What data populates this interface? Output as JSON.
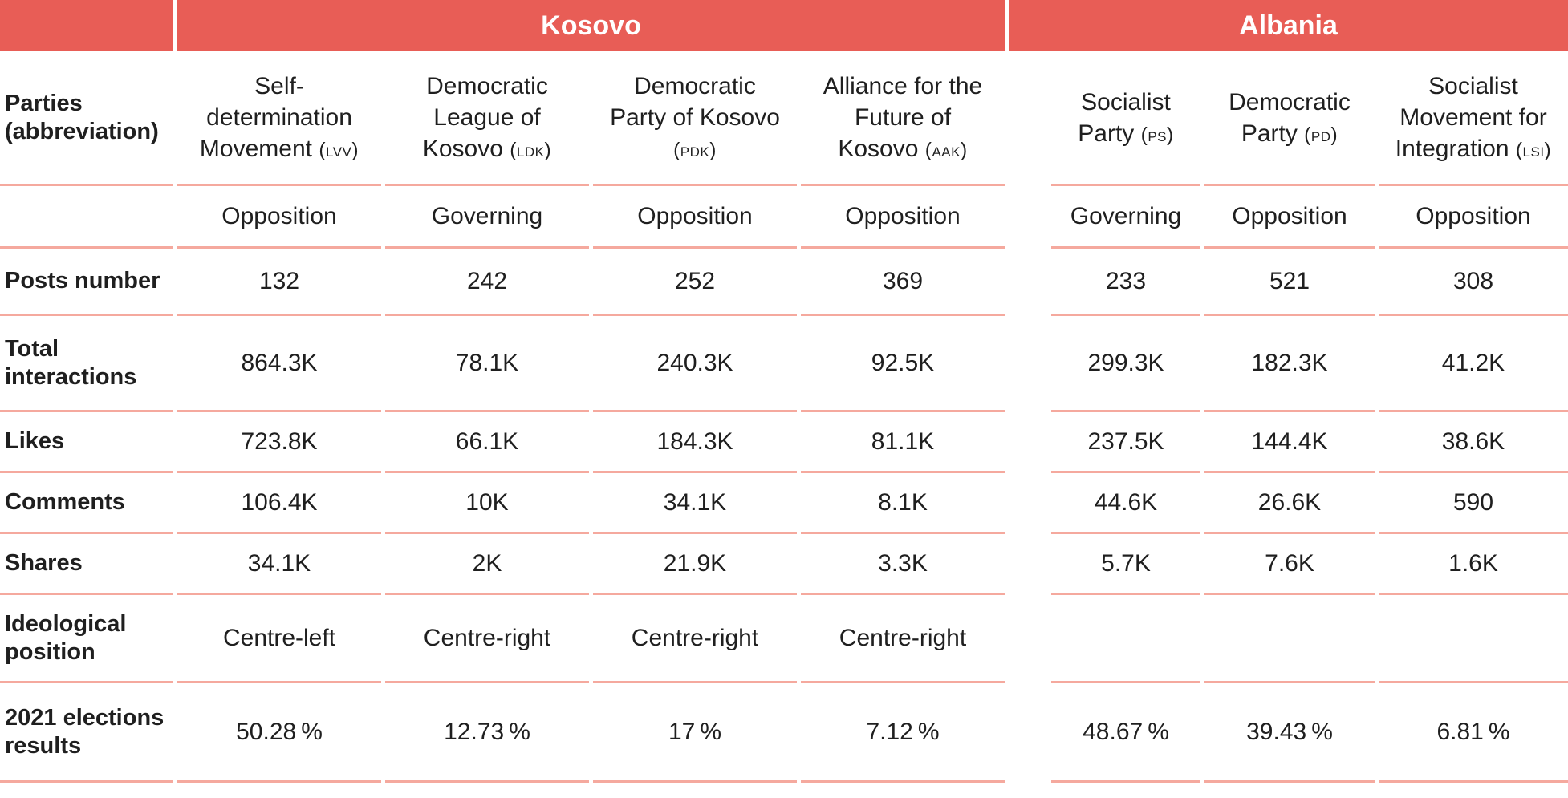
{
  "chart_data": {
    "type": "table",
    "column_groups": [
      {
        "label": "Kosovo",
        "columns": 4
      },
      {
        "label": "Albania",
        "columns": 3
      }
    ],
    "header_label": "Parties (abbreviation)",
    "parties": [
      {
        "group": "Kosovo",
        "name": "Self-determination Movement",
        "abbr": "LVV"
      },
      {
        "group": "Kosovo",
        "name": "Democratic League of Kosovo",
        "abbr": "LDK"
      },
      {
        "group": "Kosovo",
        "name": "Democratic Party of Kosovo",
        "abbr": "PDK"
      },
      {
        "group": "Kosovo",
        "name": "Alliance for the Future of Kosovo",
        "abbr": "AAK"
      },
      {
        "group": "Albania",
        "name": "Socialist Party",
        "abbr": "PS"
      },
      {
        "group": "Albania",
        "name": "Democratic Party",
        "abbr": "PD"
      },
      {
        "group": "Albania",
        "name": "Socialist Movement for Integration",
        "abbr": "LSI"
      }
    ],
    "rows": [
      {
        "id": "status",
        "label": "",
        "values": [
          "Opposition",
          "Governing",
          "Opposition",
          "Opposition",
          "Governing",
          "Opposition",
          "Opposition"
        ]
      },
      {
        "id": "posts",
        "label": "Posts number",
        "values": [
          "132",
          "242",
          "252",
          "369",
          "233",
          "521",
          "308"
        ]
      },
      {
        "id": "total_interactions",
        "label": "Total interactions",
        "values": [
          "864.3K",
          "78.1K",
          "240.3K",
          "92.5K",
          "299.3K",
          "182.3K",
          "41.2K"
        ]
      },
      {
        "id": "likes",
        "label": "Likes",
        "values": [
          "723.8K",
          "66.1K",
          "184.3K",
          "81.1K",
          "237.5K",
          "144.4K",
          "38.6K"
        ]
      },
      {
        "id": "comments",
        "label": "Comments",
        "values": [
          "106.4K",
          "10K",
          "34.1K",
          "8.1K",
          "44.6K",
          "26.6K",
          "590"
        ]
      },
      {
        "id": "shares",
        "label": "Shares",
        "values": [
          "34.1K",
          "2K",
          "21.9K",
          "3.3K",
          "5.7K",
          "7.6K",
          "1.6K"
        ]
      },
      {
        "id": "ideological_position",
        "label": "Ideological position",
        "values": [
          "Centre-left",
          "Centre-right",
          "Centre-right",
          "Centre-right",
          "",
          "",
          ""
        ]
      },
      {
        "id": "elections_2021",
        "label": "2021 elections results",
        "values": [
          "50.28 %",
          "12.73 %",
          "17 %",
          "7.12 %",
          "48.67 %",
          "39.43 %",
          "6.81 %"
        ]
      }
    ]
  },
  "colors": {
    "group_header_bg": "#e85d56",
    "group_header_text": "#ffffff",
    "row_divider": "#f5a99e",
    "body_text": "#1f1f1f",
    "background": "#ffffff"
  }
}
